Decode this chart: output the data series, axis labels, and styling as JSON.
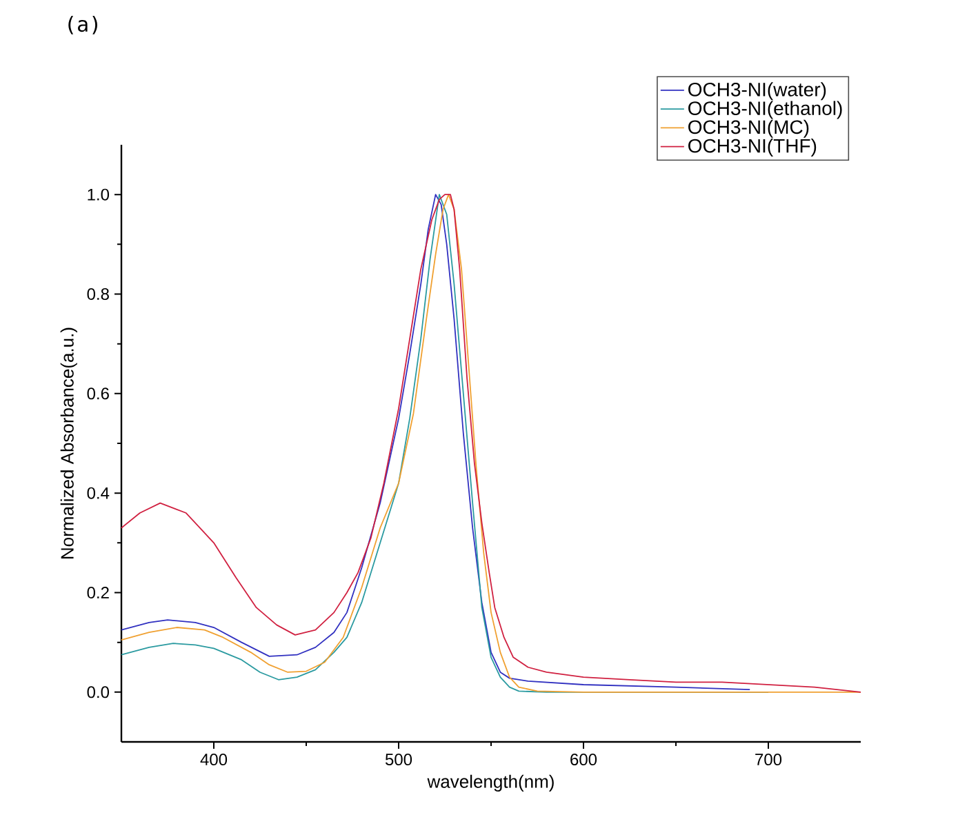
{
  "chart_data": {
    "type": "line",
    "xlabel": "wavelength(nm)",
    "ylabel": "Normalized Absorbance(a.u.)",
    "annotations": [
      "(a)"
    ],
    "xlim": [
      350,
      750
    ],
    "ylim": [
      -0.1,
      1.1
    ],
    "xticks": [
      400,
      500,
      600,
      700
    ],
    "yticks": [
      {
        "value": 0.0,
        "label": "0.0"
      },
      0.2,
      0.4,
      0.6,
      0.8,
      {
        "value": 1.0,
        "label": "1.0"
      }
    ],
    "legend": "top right",
    "line_style": "solid",
    "series": [
      {
        "name": "OCH3-NI(water)",
        "color": "#3030c0",
        "x": [
          350,
          365,
          375,
          390,
          400,
          415,
          430,
          445,
          455,
          465,
          472,
          480,
          490,
          500,
          506,
          512,
          516,
          520,
          523,
          526,
          530,
          535,
          540,
          545,
          550,
          555,
          560,
          570,
          600,
          650,
          690
        ],
        "values": [
          0.125,
          0.14,
          0.145,
          0.14,
          0.13,
          0.1,
          0.072,
          0.075,
          0.09,
          0.12,
          0.16,
          0.25,
          0.38,
          0.55,
          0.68,
          0.82,
          0.93,
          1.0,
          0.98,
          0.9,
          0.75,
          0.52,
          0.33,
          0.18,
          0.08,
          0.04,
          0.028,
          0.022,
          0.015,
          0.01,
          0.005
        ]
      },
      {
        "name": "OCH3-NI(ethanol)",
        "color": "#2a9aa0",
        "x": [
          350,
          365,
          378,
          390,
          400,
          415,
          425,
          435,
          445,
          455,
          465,
          472,
          480,
          490,
          500,
          506,
          512,
          517,
          522,
          526,
          530,
          535,
          540,
          545,
          550,
          555,
          560,
          565,
          580,
          600,
          650,
          700
        ],
        "values": [
          0.075,
          0.09,
          0.098,
          0.095,
          0.088,
          0.065,
          0.04,
          0.025,
          0.03,
          0.045,
          0.08,
          0.11,
          0.18,
          0.3,
          0.42,
          0.55,
          0.71,
          0.87,
          1.0,
          0.96,
          0.82,
          0.6,
          0.38,
          0.17,
          0.07,
          0.03,
          0.01,
          0.002,
          0,
          0,
          0,
          0
        ]
      },
      {
        "name": "OCH3-NI(MC)",
        "color": "#f0a030",
        "x": [
          350,
          365,
          380,
          395,
          405,
          420,
          430,
          440,
          450,
          460,
          470,
          480,
          490,
          500,
          508,
          515,
          520,
          524,
          527,
          530,
          534,
          538,
          542,
          546,
          550,
          555,
          560,
          565,
          575,
          600,
          650,
          700,
          750
        ],
        "values": [
          0.105,
          0.12,
          0.13,
          0.125,
          0.11,
          0.08,
          0.055,
          0.04,
          0.042,
          0.06,
          0.11,
          0.21,
          0.33,
          0.42,
          0.56,
          0.75,
          0.88,
          0.97,
          1.0,
          0.97,
          0.85,
          0.65,
          0.45,
          0.28,
          0.16,
          0.08,
          0.03,
          0.01,
          0.002,
          0,
          0,
          0,
          0
        ]
      },
      {
        "name": "OCH3-NI(THF)",
        "color": "#d02040",
        "x": [
          350,
          360,
          371,
          385,
          400,
          412,
          423,
          434,
          444,
          455,
          465,
          472,
          478,
          485,
          492,
          500,
          506,
          512,
          518,
          522,
          525,
          528,
          530,
          533,
          537,
          541,
          545,
          549,
          552,
          557,
          562,
          570,
          580,
          600,
          625,
          650,
          675,
          700,
          725,
          750
        ],
        "values": [
          0.33,
          0.36,
          0.38,
          0.36,
          0.3,
          0.23,
          0.17,
          0.135,
          0.115,
          0.125,
          0.16,
          0.2,
          0.24,
          0.31,
          0.42,
          0.57,
          0.71,
          0.85,
          0.95,
          0.99,
          1.0,
          1.0,
          0.97,
          0.85,
          0.63,
          0.46,
          0.34,
          0.24,
          0.17,
          0.11,
          0.07,
          0.05,
          0.04,
          0.03,
          0.025,
          0.02,
          0.02,
          0.015,
          0.01,
          0.0
        ]
      }
    ]
  }
}
